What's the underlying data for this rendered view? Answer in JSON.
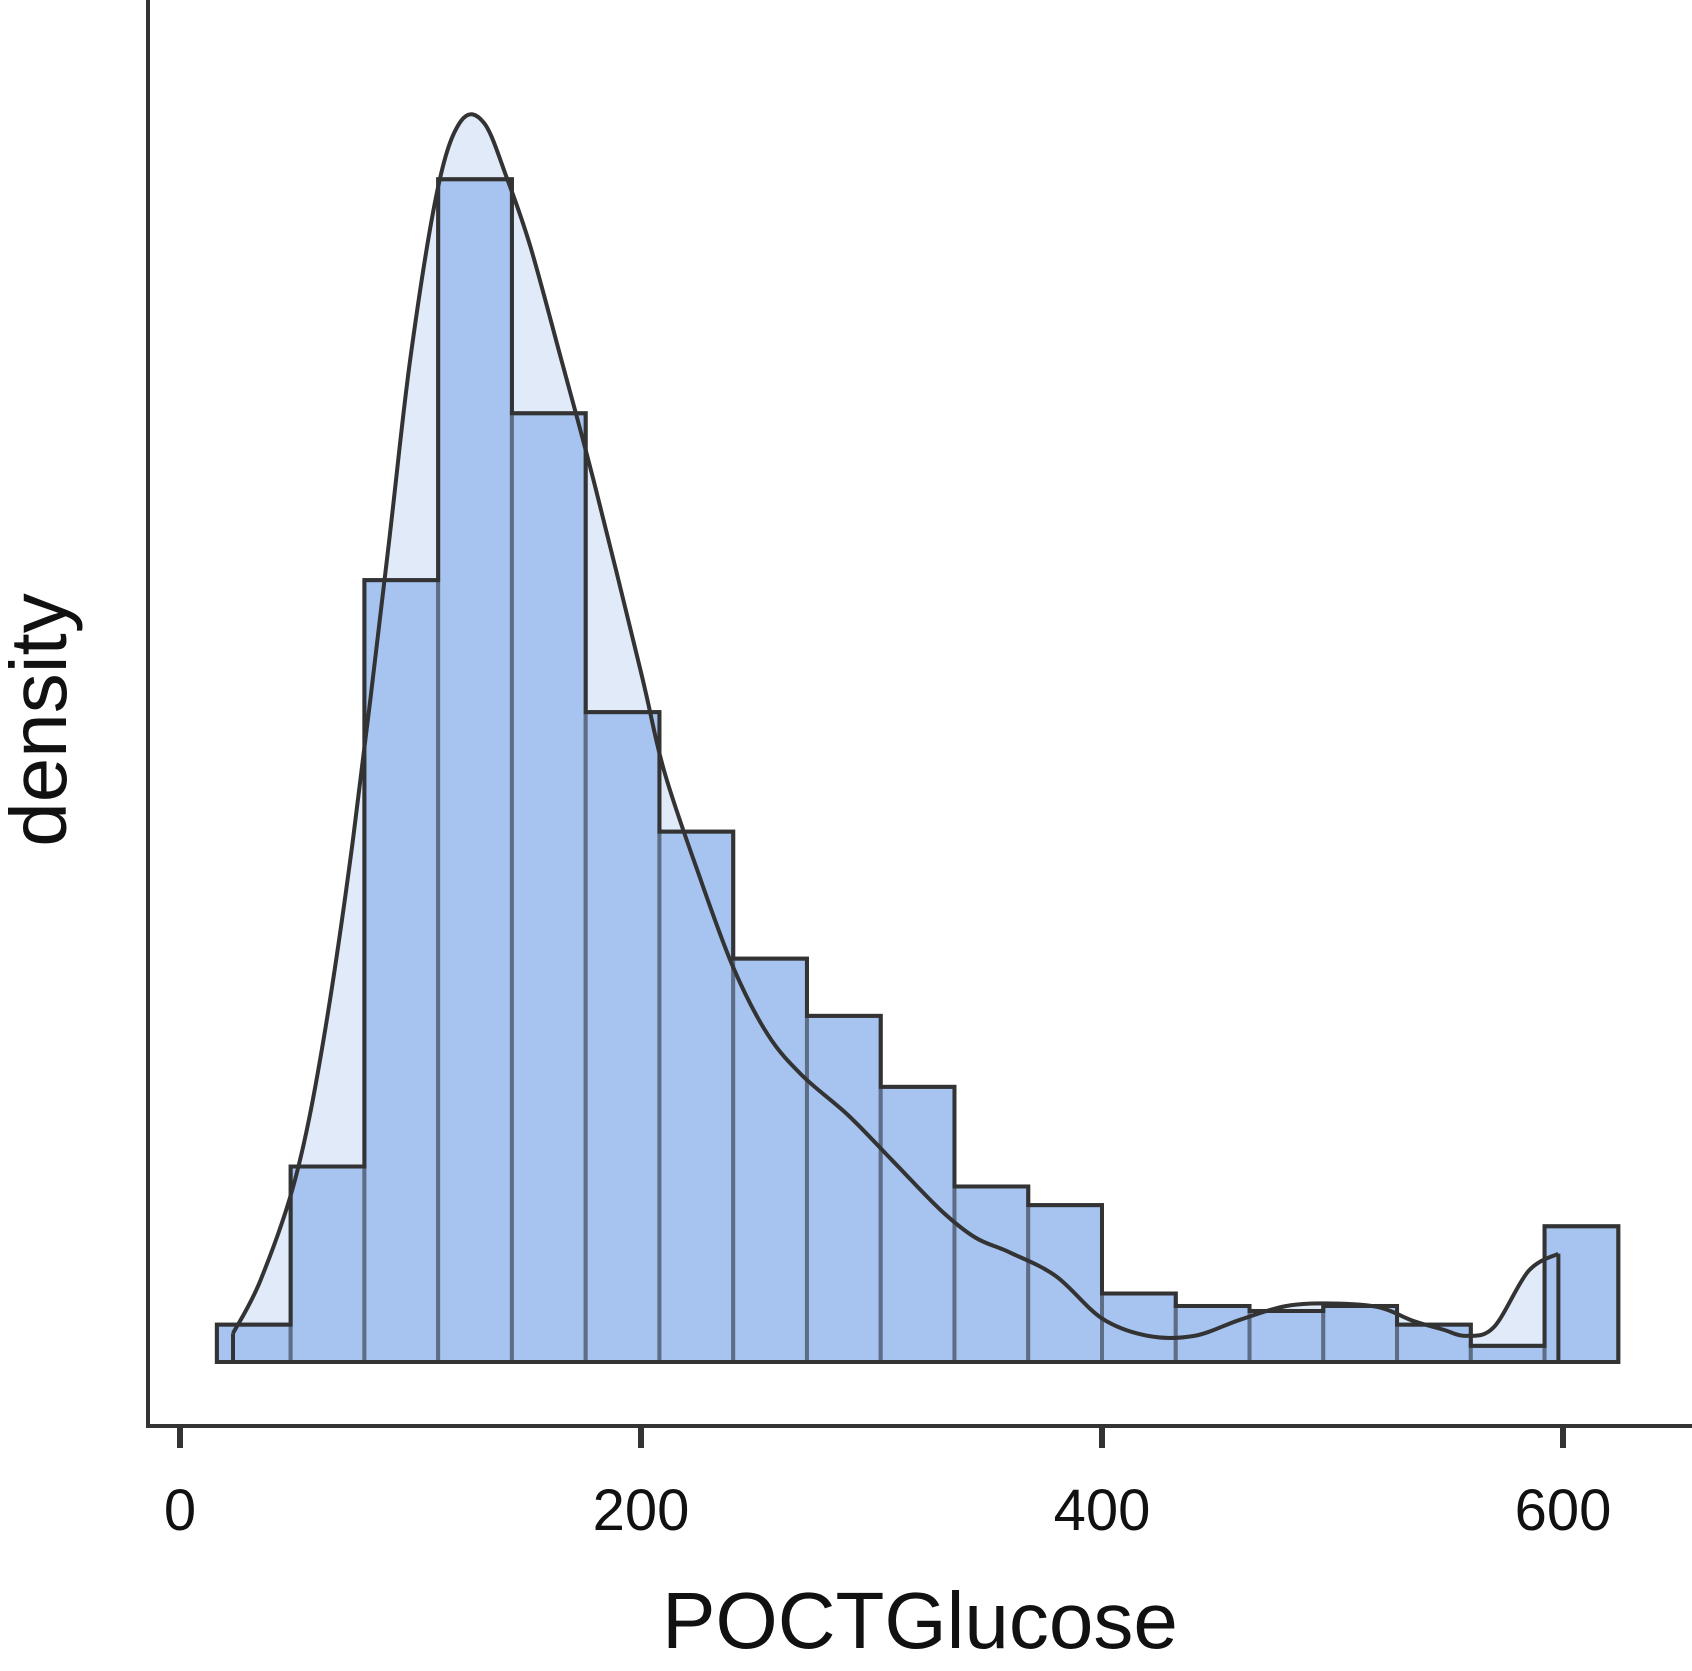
{
  "chart_data": {
    "type": "histogram",
    "xlabel": "POCTGlucose",
    "ylabel": "density",
    "xlim": [
      -10,
      660
    ],
    "x_ticks": [
      0,
      200,
      400,
      600
    ],
    "y_tick_labels_shown": false,
    "grid": false,
    "legend": "none",
    "colors": {
      "bar_fill": "#a7c4f1",
      "density_fill": "#dbe6f8",
      "outline": "#333333",
      "inner_edge": "#5d6d86"
    },
    "bins": [
      {
        "x0": 16,
        "x1": 48,
        "height": 0.3
      },
      {
        "x0": 48,
        "x1": 80,
        "height": 1.57
      },
      {
        "x0": 80,
        "x1": 112,
        "height": 6.28
      },
      {
        "x0": 112,
        "x1": 144,
        "height": 9.5
      },
      {
        "x0": 144,
        "x1": 176,
        "height": 7.62
      },
      {
        "x0": 176,
        "x1": 208,
        "height": 5.22
      },
      {
        "x0": 208,
        "x1": 240,
        "height": 4.26
      },
      {
        "x0": 240,
        "x1": 272,
        "height": 3.24
      },
      {
        "x0": 272,
        "x1": 304,
        "height": 2.78
      },
      {
        "x0": 304,
        "x1": 336,
        "height": 2.21
      },
      {
        "x0": 336,
        "x1": 368,
        "height": 1.41
      },
      {
        "x0": 368,
        "x1": 400,
        "height": 1.26
      },
      {
        "x0": 400,
        "x1": 432,
        "height": 0.55
      },
      {
        "x0": 432,
        "x1": 464,
        "height": 0.45
      },
      {
        "x0": 464,
        "x1": 496,
        "height": 0.41
      },
      {
        "x0": 496,
        "x1": 528,
        "height": 0.45
      },
      {
        "x0": 528,
        "x1": 560,
        "height": 0.3
      },
      {
        "x0": 560,
        "x1": 592,
        "height": 0.13
      },
      {
        "x0": 592,
        "x1": 624,
        "height": 1.09
      }
    ],
    "density": {
      "x": [
        23,
        35,
        50,
        62,
        75,
        90,
        100,
        112,
        122,
        132,
        142,
        152,
        165,
        180,
        200,
        210,
        225,
        240,
        255,
        270,
        290,
        310,
        330,
        345,
        360,
        380,
        400,
        420,
        440,
        460,
        480,
        500,
        520,
        535,
        548,
        558,
        570,
        585,
        598
      ],
      "y": [
        0.23,
        0.66,
        1.47,
        2.56,
        4.19,
        6.48,
        8.07,
        9.44,
        9.97,
        9.95,
        9.5,
        8.96,
        8.08,
        7.04,
        5.54,
        4.75,
        3.92,
        3.17,
        2.63,
        2.3,
        1.98,
        1.6,
        1.22,
        1.0,
        0.88,
        0.69,
        0.35,
        0.21,
        0.21,
        0.34,
        0.45,
        0.47,
        0.44,
        0.33,
        0.26,
        0.21,
        0.28,
        0.73,
        0.87
      ]
    },
    "ylim": [
      0,
      10.5
    ]
  }
}
